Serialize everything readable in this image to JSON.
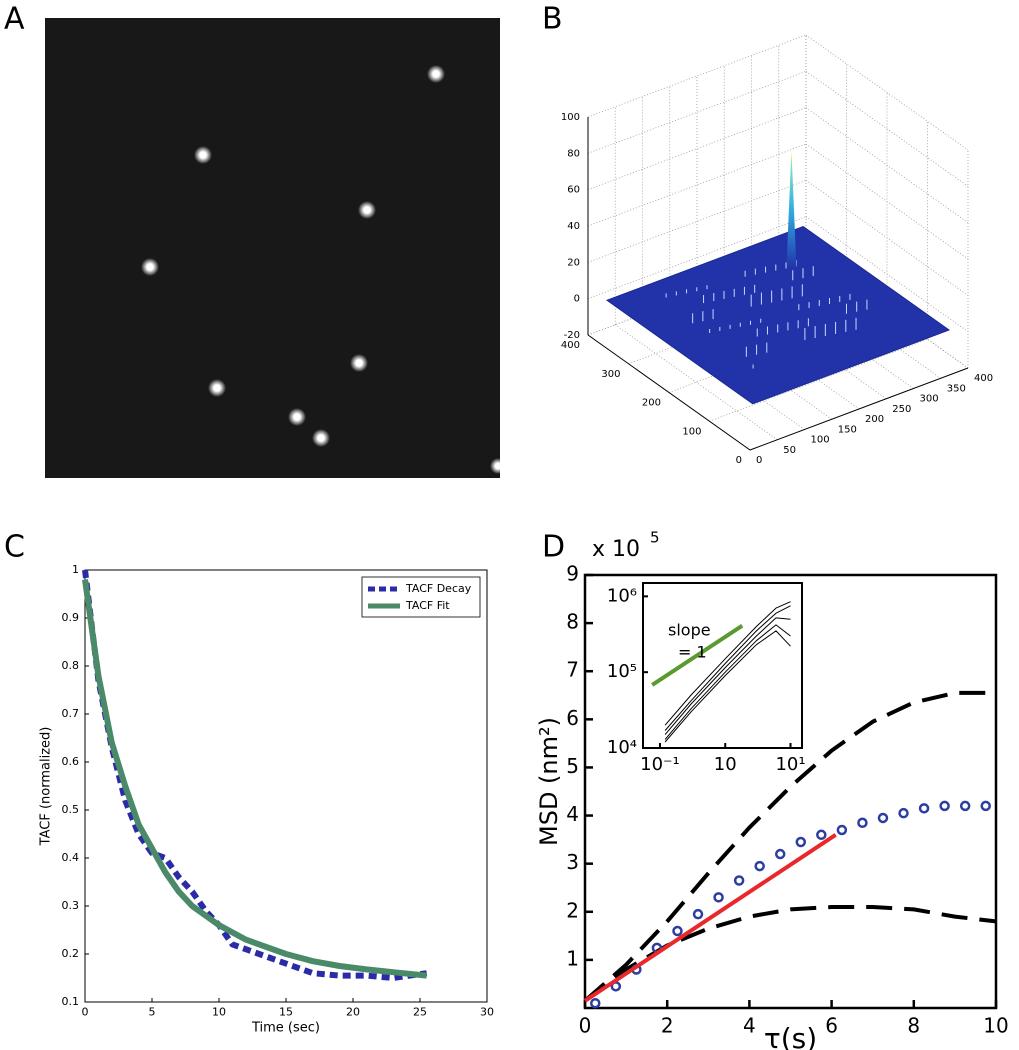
{
  "chart_data": [
    {
      "type": "image",
      "panel": "A"
    },
    {
      "type": "surface3d",
      "panel": "B",
      "color": "#2233aa",
      "xlim": [
        0,
        400
      ],
      "xticks": [
        0,
        50,
        100,
        150,
        200,
        250,
        300,
        350,
        400
      ],
      "ylim": [
        0,
        400
      ],
      "yticks": [
        0,
        100,
        200,
        300,
        400
      ],
      "zlim": [
        -20,
        100
      ],
      "zticks": [
        -20,
        0,
        20,
        40,
        60,
        80,
        100
      ],
      "grid": true
    },
    {
      "type": "line",
      "panel": "C",
      "xlabel": "Time (sec)",
      "ylabel": "TACF (normalized)",
      "x": [
        0,
        1,
        2,
        3,
        4,
        5,
        6,
        7,
        8,
        9,
        10,
        11,
        12,
        13,
        15,
        17,
        19,
        21,
        23,
        25.5
      ],
      "series": [
        {
          "name": "TACF Decay",
          "color": "#2b2ba8",
          "dash": true,
          "values": [
            1.0,
            0.77,
            0.63,
            0.52,
            0.45,
            0.41,
            0.4,
            0.36,
            0.33,
            0.29,
            0.26,
            0.22,
            0.21,
            0.2,
            0.18,
            0.16,
            0.155,
            0.155,
            0.15,
            0.16
          ]
        },
        {
          "name": "TACF Fit",
          "color": "#4a8a68",
          "values": [
            0.98,
            0.78,
            0.64,
            0.55,
            0.47,
            0.42,
            0.37,
            0.33,
            0.3,
            0.28,
            0.26,
            0.245,
            0.23,
            0.22,
            0.2,
            0.185,
            0.175,
            0.168,
            0.162,
            0.155
          ]
        }
      ],
      "xlim": [
        0,
        30
      ],
      "xticks": [
        0,
        5,
        10,
        15,
        20,
        25,
        30
      ],
      "ylim": [
        0.1,
        1
      ],
      "yticks": [
        0.1,
        0.2,
        0.3,
        0.4,
        0.5,
        0.6,
        0.7,
        0.8,
        0.9,
        1
      ],
      "legend": "upper right"
    },
    {
      "type": "line",
      "panel": "D",
      "xlabel": "τ(s)",
      "ylabel": "MSD (nm²)",
      "y_multiplier": "x 10",
      "y_multiplier_exp": "5",
      "x": [
        0,
        1,
        2,
        3,
        4,
        5,
        6,
        7,
        8,
        9,
        10
      ],
      "series": [
        {
          "color": "#000000",
          "dash": true,
          "values": [
            0.15,
            0.9,
            1.8,
            2.8,
            3.75,
            4.6,
            5.35,
            5.95,
            6.35,
            6.55,
            6.55
          ]
        },
        {
          "color": "#000000",
          "dash": true,
          "values": [
            0.15,
            0.8,
            1.3,
            1.65,
            1.9,
            2.05,
            2.1,
            2.1,
            2.05,
            1.9,
            1.8
          ]
        },
        {
          "color": "#2c3ea0",
          "marker": "circle-open",
          "x": [
            0.25,
            0.75,
            1.25,
            1.75,
            2.25,
            2.75,
            3.25,
            3.75,
            4.25,
            4.75,
            5.25,
            5.75,
            6.25,
            6.75,
            7.25,
            7.75,
            8.25,
            8.75,
            9.25,
            9.75
          ],
          "values": [
            0.1,
            0.45,
            0.8,
            1.25,
            1.6,
            1.95,
            2.3,
            2.65,
            2.95,
            3.2,
            3.45,
            3.6,
            3.7,
            3.85,
            3.95,
            4.05,
            4.15,
            4.2,
            4.2,
            4.2
          ]
        },
        {
          "color": "#e8282a",
          "x": [
            0,
            6.1
          ],
          "values": [
            0.15,
            3.6
          ]
        }
      ],
      "xlim": [
        0,
        10
      ],
      "xticks": [
        0,
        2,
        4,
        6,
        8,
        10
      ],
      "ylim": [
        0,
        9
      ],
      "yticks": [
        1,
        2,
        3,
        4,
        5,
        6,
        7,
        8,
        9
      ],
      "inset": {
        "log": true,
        "annotation": "slope",
        "annotation2": "= 1",
        "xlim": [
          0.055,
          15
        ],
        "xticks": [
          {
            "value": 0.1,
            "label": "10⁻¹"
          },
          {
            "value": 1,
            "label": "10"
          },
          {
            "value": 10,
            "label": "10¹"
          }
        ],
        "ylim": [
          10000,
          1500000
        ],
        "yticks": [
          {
            "value": 10000,
            "label": "10⁴"
          },
          {
            "value": 100000,
            "label": "10⁵"
          },
          {
            "value": 1000000,
            "label": "10⁶"
          }
        ],
        "x": [
          0.12,
          0.3,
          1,
          3,
          6,
          10
        ],
        "series": [
          {
            "color": "#000000",
            "values": [
              20000,
              50000,
              150000,
              400000,
              700000,
              850000
            ]
          },
          {
            "color": "#000000",
            "values": [
              17000,
              42000,
              130000,
              350000,
              600000,
              750000
            ]
          },
          {
            "color": "#000000",
            "values": [
              15000,
              38000,
              115000,
              300000,
              520000,
              500000
            ]
          },
          {
            "color": "#000000",
            "values": [
              13000,
              33000,
              100000,
              260000,
              420000,
              300000
            ]
          },
          {
            "color": "#000000",
            "values": [
              12000,
              30000,
              90000,
              230000,
              350000,
              220000
            ]
          },
          {
            "color": "#5a9a30",
            "width": 4,
            "x": [
              0.076,
              1.82
            ],
            "values": [
              68000,
              410000
            ]
          }
        ]
      }
    }
  ]
}
